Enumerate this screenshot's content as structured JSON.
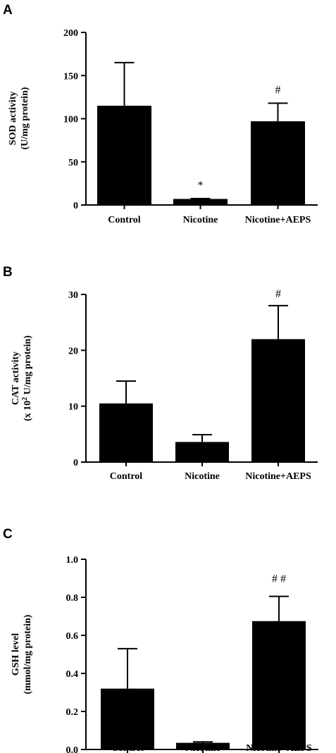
{
  "chart_data": [
    {
      "panel": "A",
      "type": "bar",
      "categories": [
        "Control",
        "Nicotine",
        "Nicotine+AEPS"
      ],
      "values": [
        115,
        7,
        97
      ],
      "errors": [
        50,
        0.5,
        21
      ],
      "annotations": [
        "",
        "*",
        "#"
      ],
      "ylabel": [
        "SOD activity",
        "(U/mg protein)"
      ],
      "ylim": [
        0,
        200
      ],
      "yticks": [
        0,
        50,
        100,
        150,
        200
      ],
      "tick_labels": [
        "0",
        "50",
        "100",
        "150",
        "200"
      ],
      "color": "#000000",
      "grid": false
    },
    {
      "panel": "B",
      "type": "bar",
      "categories": [
        "Control",
        "Nicotine",
        "Nicotine+AEPS"
      ],
      "values": [
        10.5,
        3.6,
        22
      ],
      "errors": [
        4,
        1.3,
        6
      ],
      "annotations": [
        "",
        "",
        "#"
      ],
      "ylabel": [
        "CAT activity",
        "(x 10",
        "2",
        " U/mg protein)"
      ],
      "ylim": [
        0,
        30
      ],
      "yticks": [
        0,
        10,
        20,
        30
      ],
      "tick_labels": [
        "0",
        "10",
        "20",
        "30"
      ],
      "color": "#000000",
      "grid": false
    },
    {
      "panel": "C",
      "type": "bar",
      "categories": [
        "Control",
        "Nicotine",
        "Nicotine+AEPS"
      ],
      "values": [
        0.32,
        0.035,
        0.675
      ],
      "errors": [
        0.21,
        0.005,
        0.13
      ],
      "annotations": [
        "",
        "",
        "##"
      ],
      "ylabel": [
        "GSH level",
        "(mmol/mg protein)"
      ],
      "ylim": [
        0,
        1.0
      ],
      "yticks": [
        0,
        0.2,
        0.4,
        0.6,
        0.8,
        1.0
      ],
      "tick_labels": [
        "0.0",
        "0.2",
        "0.4",
        "0.6",
        "0.8",
        "1.0"
      ],
      "color": "#000000",
      "grid": false
    }
  ]
}
